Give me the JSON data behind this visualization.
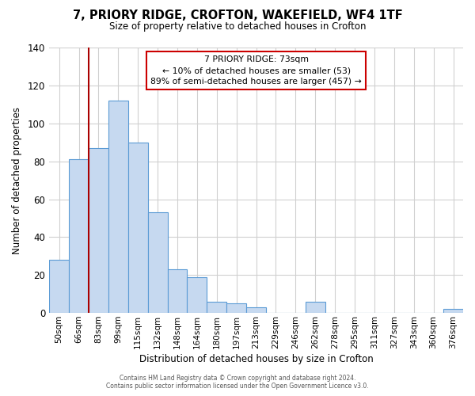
{
  "title": "7, PRIORY RIDGE, CROFTON, WAKEFIELD, WF4 1TF",
  "subtitle": "Size of property relative to detached houses in Crofton",
  "xlabel": "Distribution of detached houses by size in Crofton",
  "ylabel": "Number of detached properties",
  "bar_labels": [
    "50sqm",
    "66sqm",
    "83sqm",
    "99sqm",
    "115sqm",
    "132sqm",
    "148sqm",
    "164sqm",
    "180sqm",
    "197sqm",
    "213sqm",
    "229sqm",
    "246sqm",
    "262sqm",
    "278sqm",
    "295sqm",
    "311sqm",
    "327sqm",
    "343sqm",
    "360sqm",
    "376sqm"
  ],
  "bar_values": [
    28,
    81,
    87,
    112,
    90,
    53,
    23,
    19,
    6,
    5,
    3,
    0,
    0,
    6,
    0,
    0,
    0,
    0,
    0,
    0,
    2
  ],
  "bar_color": "#c6d9f0",
  "bar_edge_color": "#5b9bd5",
  "ylim": [
    0,
    140
  ],
  "yticks": [
    0,
    20,
    40,
    60,
    80,
    100,
    120,
    140
  ],
  "vline_x": 1.5,
  "vline_color": "#aa0000",
  "annotation_text_line1": "7 PRIORY RIDGE: 73sqm",
  "annotation_text_line2": "← 10% of detached houses are smaller (53)",
  "annotation_text_line3": "89% of semi-detached houses are larger (457) →",
  "footer_line1": "Contains HM Land Registry data © Crown copyright and database right 2024.",
  "footer_line2": "Contains public sector information licensed under the Open Government Licence v3.0.",
  "background_color": "#ffffff",
  "grid_color": "#d0d0d0"
}
